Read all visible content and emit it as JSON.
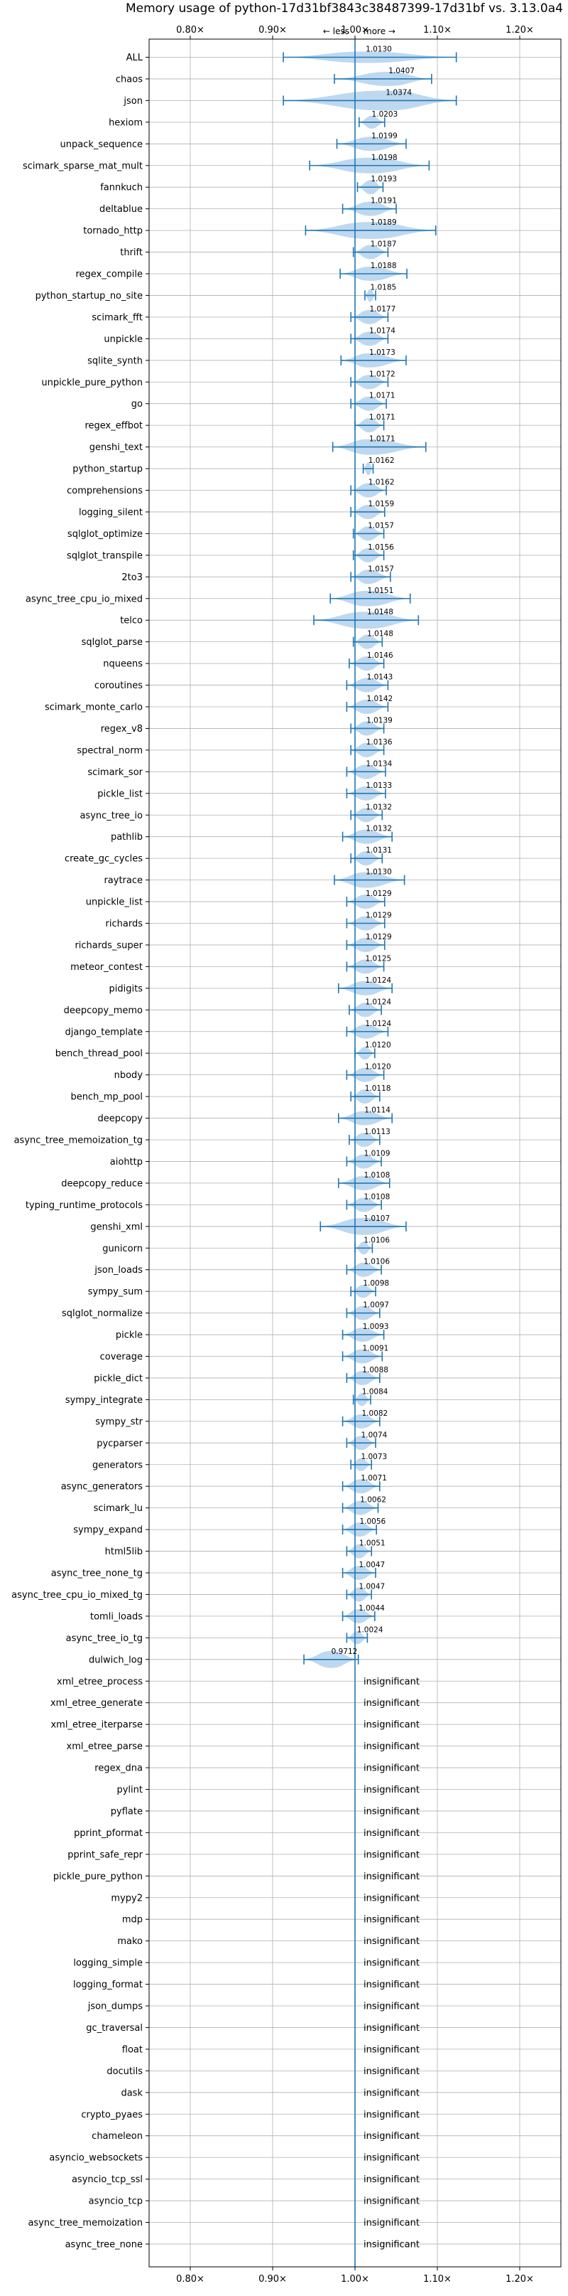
{
  "chart_data": {
    "type": "violin",
    "title": "Memory usage of python-17d31bf3843c38487399-17d31bf vs. 3.13.0a4",
    "less_label": "← less",
    "more_label": "more →",
    "xlim": [
      0.75,
      1.25
    ],
    "x_ticks": [
      0.8,
      0.9,
      1.0,
      1.1,
      1.2
    ],
    "x_tick_labels": [
      "0.80×",
      "0.90×",
      "1.00×",
      "1.10×",
      "1.20×"
    ],
    "reference_line": 1.0,
    "grid": true,
    "insignificant_label": "insignificant",
    "categories": [
      {
        "name": "ALL",
        "value": 1.013,
        "label": "1.0130",
        "min": 0.913,
        "max": 1.123,
        "width": 0.4
      },
      {
        "name": "chaos",
        "value": 1.0407,
        "label": "1.0407",
        "min": 0.975,
        "max": 1.093,
        "width": 0.6
      },
      {
        "name": "json",
        "value": 1.0374,
        "label": "1.0374",
        "min": 0.913,
        "max": 1.123,
        "width": 1.0
      },
      {
        "name": "hexiom",
        "value": 1.0203,
        "label": "1.0203",
        "min": 1.005,
        "max": 1.036,
        "width": 0.5
      },
      {
        "name": "unpack_sequence",
        "value": 1.0199,
        "label": "1.0199",
        "min": 0.978,
        "max": 1.062,
        "width": 0.6
      },
      {
        "name": "scimark_sparse_mat_mult",
        "value": 1.0198,
        "label": "1.0198",
        "min": 0.945,
        "max": 1.09,
        "width": 0.7
      },
      {
        "name": "fannkuch",
        "value": 1.0193,
        "label": "1.0193",
        "min": 1.003,
        "max": 1.034,
        "width": 0.6
      },
      {
        "name": "deltablue",
        "value": 1.0191,
        "label": "1.0191",
        "min": 0.985,
        "max": 1.05,
        "width": 0.6
      },
      {
        "name": "tornado_http",
        "value": 1.0189,
        "label": "1.0189",
        "min": 0.94,
        "max": 1.098,
        "width": 0.8
      },
      {
        "name": "thrift",
        "value": 1.0187,
        "label": "1.0187",
        "min": 0.998,
        "max": 1.04,
        "width": 0.6
      },
      {
        "name": "regex_compile",
        "value": 1.0188,
        "label": "1.0188",
        "min": 0.982,
        "max": 1.063,
        "width": 0.6
      },
      {
        "name": "python_startup_no_site",
        "value": 1.0185,
        "label": "1.0185",
        "min": 1.012,
        "max": 1.025,
        "width": 0.5
      },
      {
        "name": "scimark_fft",
        "value": 1.0177,
        "label": "1.0177",
        "min": 0.995,
        "max": 1.04,
        "width": 0.6
      },
      {
        "name": "unpickle",
        "value": 1.0174,
        "label": "1.0174",
        "min": 0.995,
        "max": 1.04,
        "width": 0.6
      },
      {
        "name": "sqlite_synth",
        "value": 1.0173,
        "label": "1.0173",
        "min": 0.983,
        "max": 1.062,
        "width": 0.6
      },
      {
        "name": "unpickle_pure_python",
        "value": 1.0172,
        "label": "1.0172",
        "min": 0.995,
        "max": 1.04,
        "width": 0.6
      },
      {
        "name": "go",
        "value": 1.0171,
        "label": "1.0171",
        "min": 0.995,
        "max": 1.038,
        "width": 0.6
      },
      {
        "name": "regex_effbot",
        "value": 1.0171,
        "label": "1.0171",
        "min": 1.0,
        "max": 1.035,
        "width": 0.6
      },
      {
        "name": "genshi_text",
        "value": 1.0171,
        "label": "1.0171",
        "min": 0.973,
        "max": 1.086,
        "width": 0.7
      },
      {
        "name": "python_startup",
        "value": 1.0162,
        "label": "1.0162",
        "min": 1.01,
        "max": 1.022,
        "width": 0.5
      },
      {
        "name": "comprehensions",
        "value": 1.0162,
        "label": "1.0162",
        "min": 0.995,
        "max": 1.038,
        "width": 0.6
      },
      {
        "name": "logging_silent",
        "value": 1.0159,
        "label": "1.0159",
        "min": 0.995,
        "max": 1.036,
        "width": 0.6
      },
      {
        "name": "sqlglot_optimize",
        "value": 1.0157,
        "label": "1.0157",
        "min": 0.998,
        "max": 1.035,
        "width": 0.6
      },
      {
        "name": "sqlglot_transpile",
        "value": 1.0156,
        "label": "1.0156",
        "min": 0.998,
        "max": 1.035,
        "width": 0.6
      },
      {
        "name": "2to3",
        "value": 1.0157,
        "label": "1.0157",
        "min": 0.995,
        "max": 1.043,
        "width": 0.6
      },
      {
        "name": "async_tree_cpu_io_mixed",
        "value": 1.0151,
        "label": "1.0151",
        "min": 0.97,
        "max": 1.067,
        "width": 0.7
      },
      {
        "name": "telco",
        "value": 1.0148,
        "label": "1.0148",
        "min": 0.95,
        "max": 1.077,
        "width": 0.8
      },
      {
        "name": "sqlglot_parse",
        "value": 1.0148,
        "label": "1.0148",
        "min": 0.998,
        "max": 1.033,
        "width": 0.6
      },
      {
        "name": "nqueens",
        "value": 1.0146,
        "label": "1.0146",
        "min": 0.993,
        "max": 1.035,
        "width": 0.6
      },
      {
        "name": "coroutines",
        "value": 1.0143,
        "label": "1.0143",
        "min": 0.99,
        "max": 1.04,
        "width": 0.6
      },
      {
        "name": "scimark_monte_carlo",
        "value": 1.0142,
        "label": "1.0142",
        "min": 0.99,
        "max": 1.04,
        "width": 0.6
      },
      {
        "name": "regex_v8",
        "value": 1.0139,
        "label": "1.0139",
        "min": 0.995,
        "max": 1.035,
        "width": 0.6
      },
      {
        "name": "spectral_norm",
        "value": 1.0136,
        "label": "1.0136",
        "min": 0.995,
        "max": 1.035,
        "width": 0.6
      },
      {
        "name": "scimark_sor",
        "value": 1.0134,
        "label": "1.0134",
        "min": 0.99,
        "max": 1.037,
        "width": 0.6
      },
      {
        "name": "pickle_list",
        "value": 1.0133,
        "label": "1.0133",
        "min": 0.99,
        "max": 1.037,
        "width": 0.6
      },
      {
        "name": "async_tree_io",
        "value": 1.0132,
        "label": "1.0132",
        "min": 0.995,
        "max": 1.033,
        "width": 0.6
      },
      {
        "name": "pathlib",
        "value": 1.0132,
        "label": "1.0132",
        "min": 0.985,
        "max": 1.045,
        "width": 0.6
      },
      {
        "name": "create_gc_cycles",
        "value": 1.0131,
        "label": "1.0131",
        "min": 0.995,
        "max": 1.033,
        "width": 0.6
      },
      {
        "name": "raytrace",
        "value": 1.013,
        "label": "1.0130",
        "min": 0.975,
        "max": 1.06,
        "width": 0.7
      },
      {
        "name": "unpickle_list",
        "value": 1.0129,
        "label": "1.0129",
        "min": 0.99,
        "max": 1.036,
        "width": 0.6
      },
      {
        "name": "richards",
        "value": 1.0129,
        "label": "1.0129",
        "min": 0.99,
        "max": 1.036,
        "width": 0.6
      },
      {
        "name": "richards_super",
        "value": 1.0129,
        "label": "1.0129",
        "min": 0.99,
        "max": 1.036,
        "width": 0.6
      },
      {
        "name": "meteor_contest",
        "value": 1.0125,
        "label": "1.0125",
        "min": 0.99,
        "max": 1.035,
        "width": 0.6
      },
      {
        "name": "pidigits",
        "value": 1.0124,
        "label": "1.0124",
        "min": 0.98,
        "max": 1.045,
        "width": 0.6
      },
      {
        "name": "deepcopy_memo",
        "value": 1.0124,
        "label": "1.0124",
        "min": 0.993,
        "max": 1.032,
        "width": 0.6
      },
      {
        "name": "django_template",
        "value": 1.0124,
        "label": "1.0124",
        "min": 0.99,
        "max": 1.04,
        "width": 0.6
      },
      {
        "name": "bench_thread_pool",
        "value": 1.012,
        "label": "1.0120",
        "min": 1.0,
        "max": 1.024,
        "width": 0.5
      },
      {
        "name": "nbody",
        "value": 1.012,
        "label": "1.0120",
        "min": 0.99,
        "max": 1.035,
        "width": 0.6
      },
      {
        "name": "bench_mp_pool",
        "value": 1.0118,
        "label": "1.0118",
        "min": 0.995,
        "max": 1.03,
        "width": 0.6
      },
      {
        "name": "deepcopy",
        "value": 1.0114,
        "label": "1.0114",
        "min": 0.98,
        "max": 1.045,
        "width": 0.6
      },
      {
        "name": "async_tree_memoization_tg",
        "value": 1.0113,
        "label": "1.0113",
        "min": 0.993,
        "max": 1.03,
        "width": 0.6
      },
      {
        "name": "aiohttp",
        "value": 1.0109,
        "label": "1.0109",
        "min": 0.99,
        "max": 1.032,
        "width": 0.6
      },
      {
        "name": "deepcopy_reduce",
        "value": 1.0108,
        "label": "1.0108",
        "min": 0.98,
        "max": 1.042,
        "width": 0.6
      },
      {
        "name": "typing_runtime_protocols",
        "value": 1.0108,
        "label": "1.0108",
        "min": 0.99,
        "max": 1.032,
        "width": 0.6
      },
      {
        "name": "genshi_xml",
        "value": 1.0107,
        "label": "1.0107",
        "min": 0.958,
        "max": 1.062,
        "width": 0.8
      },
      {
        "name": "gunicorn",
        "value": 1.0106,
        "label": "1.0106",
        "min": 1.0,
        "max": 1.021,
        "width": 0.5
      },
      {
        "name": "json_loads",
        "value": 1.0106,
        "label": "1.0106",
        "min": 0.99,
        "max": 1.032,
        "width": 0.6
      },
      {
        "name": "sympy_sum",
        "value": 1.0098,
        "label": "1.0098",
        "min": 0.995,
        "max": 1.025,
        "width": 0.5
      },
      {
        "name": "sqlglot_normalize",
        "value": 1.0097,
        "label": "1.0097",
        "min": 0.99,
        "max": 1.03,
        "width": 0.6
      },
      {
        "name": "pickle",
        "value": 1.0093,
        "label": "1.0093",
        "min": 0.985,
        "max": 1.035,
        "width": 0.6
      },
      {
        "name": "coverage",
        "value": 1.0091,
        "label": "1.0091",
        "min": 0.985,
        "max": 1.033,
        "width": 0.6
      },
      {
        "name": "pickle_dict",
        "value": 1.0088,
        "label": "1.0088",
        "min": 0.99,
        "max": 1.03,
        "width": 0.6
      },
      {
        "name": "sympy_integrate",
        "value": 1.0084,
        "label": "1.0084",
        "min": 0.998,
        "max": 1.019,
        "width": 0.5
      },
      {
        "name": "sympy_str",
        "value": 1.0082,
        "label": "1.0082",
        "min": 0.985,
        "max": 1.03,
        "width": 0.6
      },
      {
        "name": "pycparser",
        "value": 1.0074,
        "label": "1.0074",
        "min": 0.99,
        "max": 1.025,
        "width": 0.6
      },
      {
        "name": "generators",
        "value": 1.0073,
        "label": "1.0073",
        "min": 0.995,
        "max": 1.02,
        "width": 0.5
      },
      {
        "name": "async_generators",
        "value": 1.0071,
        "label": "1.0071",
        "min": 0.985,
        "max": 1.03,
        "width": 0.6
      },
      {
        "name": "scimark_lu",
        "value": 1.0062,
        "label": "1.0062",
        "min": 0.985,
        "max": 1.028,
        "width": 0.6
      },
      {
        "name": "sympy_expand",
        "value": 1.0056,
        "label": "1.0056",
        "min": 0.985,
        "max": 1.026,
        "width": 0.6
      },
      {
        "name": "html5lib",
        "value": 1.0051,
        "label": "1.0051",
        "min": 0.99,
        "max": 1.02,
        "width": 0.6
      },
      {
        "name": "async_tree_none_tg",
        "value": 1.0047,
        "label": "1.0047",
        "min": 0.985,
        "max": 1.025,
        "width": 0.6
      },
      {
        "name": "async_tree_cpu_io_mixed_tg",
        "value": 1.0047,
        "label": "1.0047",
        "min": 0.99,
        "max": 1.02,
        "width": 0.6
      },
      {
        "name": "tomli_loads",
        "value": 1.0044,
        "label": "1.0044",
        "min": 0.985,
        "max": 1.024,
        "width": 0.6
      },
      {
        "name": "async_tree_io_tg",
        "value": 1.0024,
        "label": "1.0024",
        "min": 0.99,
        "max": 1.015,
        "width": 0.5
      },
      {
        "name": "dulwich_log",
        "value": 0.9712,
        "label": "0.9712",
        "min": 0.938,
        "max": 1.004,
        "width": 0.8
      },
      {
        "name": "xml_etree_process",
        "insignificant": true
      },
      {
        "name": "xml_etree_generate",
        "insignificant": true
      },
      {
        "name": "xml_etree_iterparse",
        "insignificant": true
      },
      {
        "name": "xml_etree_parse",
        "insignificant": true
      },
      {
        "name": "regex_dna",
        "insignificant": true
      },
      {
        "name": "pylint",
        "insignificant": true
      },
      {
        "name": "pyflate",
        "insignificant": true
      },
      {
        "name": "pprint_pformat",
        "insignificant": true
      },
      {
        "name": "pprint_safe_repr",
        "insignificant": true
      },
      {
        "name": "pickle_pure_python",
        "insignificant": true
      },
      {
        "name": "mypy2",
        "insignificant": true
      },
      {
        "name": "mdp",
        "insignificant": true
      },
      {
        "name": "mako",
        "insignificant": true
      },
      {
        "name": "logging_simple",
        "insignificant": true
      },
      {
        "name": "logging_format",
        "insignificant": true
      },
      {
        "name": "json_dumps",
        "insignificant": true
      },
      {
        "name": "gc_traversal",
        "insignificant": true
      },
      {
        "name": "float",
        "insignificant": true
      },
      {
        "name": "docutils",
        "insignificant": true
      },
      {
        "name": "dask",
        "insignificant": true
      },
      {
        "name": "crypto_pyaes",
        "insignificant": true
      },
      {
        "name": "chameleon",
        "insignificant": true
      },
      {
        "name": "asyncio_websockets",
        "insignificant": true
      },
      {
        "name": "asyncio_tcp_ssl",
        "insignificant": true
      },
      {
        "name": "asyncio_tcp",
        "insignificant": true
      },
      {
        "name": "async_tree_memoization",
        "insignificant": true
      },
      {
        "name": "async_tree_none",
        "insignificant": true
      }
    ],
    "colors": {
      "violin_fill": "#b3d1ec",
      "whisker": "#1f77b4",
      "reference_line": "#1f77b4",
      "grid": "#b0b0b0",
      "axes": "#000000",
      "text": "#000000"
    }
  }
}
